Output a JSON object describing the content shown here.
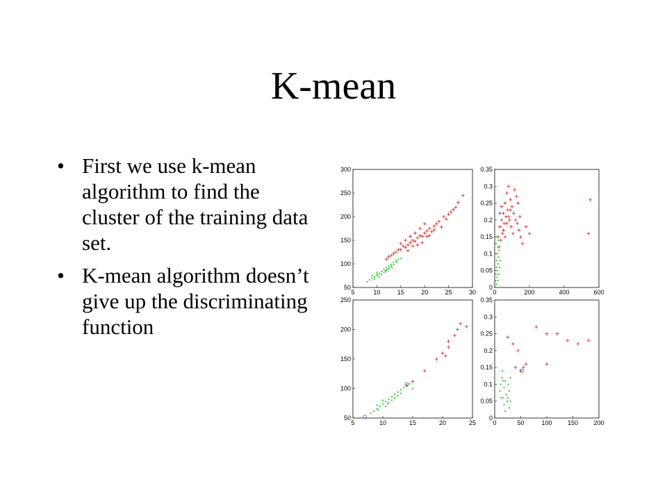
{
  "slide": {
    "title": "K-mean",
    "bullets": [
      "First we use k-mean algorithm to find the cluster of the training data set.",
      "K-mean algorithm doesn’t give up the discriminating function"
    ],
    "bullet_symbol": "•"
  },
  "chart_data": [
    {
      "type": "scatter",
      "title": "",
      "xlabel": "",
      "ylabel": "",
      "xlim": [
        5,
        30
      ],
      "ylim": [
        50,
        300
      ],
      "xticks": [
        5,
        10,
        15,
        20,
        25,
        30
      ],
      "yticks": [
        50,
        100,
        150,
        200,
        250,
        300
      ],
      "grid": false,
      "series": [
        {
          "color": "#cc2020",
          "marker": "plus",
          "points": [
            [
              12,
              110
            ],
            [
              13,
              118
            ],
            [
              14,
              125
            ],
            [
              15,
              130
            ],
            [
              15.5,
              138
            ],
            [
              16,
              135
            ],
            [
              16.5,
              140
            ],
            [
              17,
              145
            ],
            [
              17.5,
              150
            ],
            [
              18,
              148
            ],
            [
              18.5,
              155
            ],
            [
              19,
              160
            ],
            [
              19.5,
              158
            ],
            [
              20,
              165
            ],
            [
              20.5,
              170
            ],
            [
              21,
              175
            ],
            [
              21.5,
              168
            ],
            [
              22,
              180
            ],
            [
              22.5,
              185
            ],
            [
              23,
              190
            ],
            [
              24,
              200
            ],
            [
              25,
              205
            ],
            [
              26,
              215
            ],
            [
              27,
              230
            ],
            [
              28,
              245
            ],
            [
              26.5,
              220
            ],
            [
              25.5,
              210
            ],
            [
              20,
              185
            ],
            [
              19,
              175
            ],
            [
              18,
              165
            ],
            [
              17,
              158
            ],
            [
              16,
              150
            ],
            [
              14.5,
              130
            ],
            [
              13.5,
              122
            ],
            [
              15,
              143
            ],
            [
              21,
              160
            ],
            [
              22,
              172
            ],
            [
              23.5,
              178
            ],
            [
              19.5,
              145
            ],
            [
              18.5,
              140
            ],
            [
              17.5,
              138
            ],
            [
              24.5,
              195
            ],
            [
              12.5,
              115
            ],
            [
              16.5,
              128
            ],
            [
              20.5,
              158
            ]
          ]
        },
        {
          "color": "#22cc22",
          "marker": "dot",
          "points": [
            [
              8,
              62
            ],
            [
              8.5,
              66
            ],
            [
              9,
              70
            ],
            [
              9.5,
              73
            ],
            [
              10,
              77
            ],
            [
              10.5,
              80
            ],
            [
              11,
              84
            ],
            [
              11.5,
              88
            ],
            [
              12,
              92
            ],
            [
              12.5,
              95
            ],
            [
              13,
              99
            ],
            [
              13.5,
              103
            ],
            [
              14,
              107
            ],
            [
              9,
              75
            ],
            [
              10,
              82
            ],
            [
              11,
              78
            ],
            [
              12,
              86
            ],
            [
              13,
              95
            ],
            [
              10.5,
              72
            ],
            [
              11.5,
              82
            ],
            [
              12.5,
              90
            ],
            [
              13.5,
              98
            ],
            [
              14.5,
              110
            ],
            [
              15,
              112
            ],
            [
              9.5,
              68
            ],
            [
              10.2,
              76
            ],
            [
              11.8,
              85
            ],
            [
              12.2,
              88
            ],
            [
              13.2,
              92
            ],
            [
              14.2,
              104
            ]
          ]
        }
      ]
    },
    {
      "type": "scatter",
      "title": "",
      "xlabel": "",
      "ylabel": "",
      "xlim": [
        0,
        600
      ],
      "ylim": [
        0,
        0.35
      ],
      "xticks": [
        0,
        200,
        400,
        600
      ],
      "yticks": [
        0,
        0.05,
        0.1,
        0.15,
        0.2,
        0.25,
        0.3,
        0.35
      ],
      "grid": false,
      "series": [
        {
          "color": "#cc2020",
          "marker": "plus",
          "points": [
            [
              20,
              0.15
            ],
            [
              30,
              0.18
            ],
            [
              40,
              0.2
            ],
            [
              50,
              0.22
            ],
            [
              60,
              0.25
            ],
            [
              70,
              0.28
            ],
            [
              80,
              0.3
            ],
            [
              90,
              0.26
            ],
            [
              100,
              0.24
            ],
            [
              110,
              0.22
            ],
            [
              120,
              0.2
            ],
            [
              130,
              0.19
            ],
            [
              140,
              0.17
            ],
            [
              150,
              0.15
            ],
            [
              160,
              0.13
            ],
            [
              25,
              0.12
            ],
            [
              35,
              0.14
            ],
            [
              45,
              0.16
            ],
            [
              55,
              0.19
            ],
            [
              65,
              0.21
            ],
            [
              75,
              0.23
            ],
            [
              85,
              0.2
            ],
            [
              95,
              0.18
            ],
            [
              105,
              0.16
            ],
            [
              115,
              0.29
            ],
            [
              125,
              0.27
            ],
            [
              135,
              0.25
            ],
            [
              145,
              0.21
            ],
            [
              180,
              0.18
            ],
            [
              200,
              0.16
            ],
            [
              550,
              0.26
            ],
            [
              540,
              0.16
            ],
            [
              30,
              0.22
            ],
            [
              40,
              0.24
            ],
            [
              50,
              0.17
            ],
            [
              60,
              0.15
            ],
            [
              70,
              0.19
            ],
            [
              80,
              0.21
            ],
            [
              90,
              0.23
            ]
          ]
        },
        {
          "color": "#22cc22",
          "marker": "dot",
          "points": [
            [
              5,
              0.02
            ],
            [
              8,
              0.04
            ],
            [
              10,
              0.06
            ],
            [
              12,
              0.08
            ],
            [
              15,
              0.1
            ],
            [
              18,
              0.12
            ],
            [
              20,
              0.14
            ],
            [
              10,
              0.01
            ],
            [
              14,
              0.03
            ],
            [
              16,
              0.05
            ],
            [
              20,
              0.07
            ],
            [
              22,
              0.09
            ],
            [
              25,
              0.11
            ],
            [
              8,
              0.13
            ],
            [
              12,
              0.15
            ],
            [
              6,
              0.0
            ],
            [
              18,
              0.02
            ],
            [
              24,
              0.04
            ],
            [
              28,
              0.06
            ],
            [
              30,
              0.08
            ]
          ]
        }
      ]
    },
    {
      "type": "scatter",
      "title": "",
      "xlabel": "",
      "ylabel": "",
      "xlim": [
        5,
        25
      ],
      "ylim": [
        50,
        250
      ],
      "xticks": [
        5,
        10,
        15,
        20,
        25
      ],
      "yticks": [
        50,
        100,
        150,
        200,
        250
      ],
      "grid": false,
      "series": [
        {
          "color": "#cc2020",
          "marker": "plus",
          "points": [
            [
              14,
              105
            ],
            [
              15,
              112
            ],
            [
              17,
              130
            ],
            [
              19,
              150
            ],
            [
              20,
              160
            ],
            [
              20.5,
              155
            ],
            [
              21,
              170
            ],
            [
              22,
              190
            ],
            [
              22.5,
              200
            ],
            [
              23,
              210
            ],
            [
              24,
              205
            ],
            [
              21,
              180
            ]
          ]
        },
        {
          "color": "#22cc22",
          "marker": "dot",
          "points": [
            [
              8,
              58
            ],
            [
              8.5,
              62
            ],
            [
              9,
              66
            ],
            [
              9.5,
              70
            ],
            [
              10,
              74
            ],
            [
              10.5,
              78
            ],
            [
              11,
              82
            ],
            [
              11.5,
              86
            ],
            [
              12,
              90
            ],
            [
              12.5,
              94
            ],
            [
              13,
              98
            ],
            [
              13.5,
              102
            ],
            [
              14,
              106
            ],
            [
              9,
              72
            ],
            [
              10,
              80
            ],
            [
              11,
              76
            ],
            [
              12,
              84
            ],
            [
              13,
              92
            ],
            [
              10.5,
              70
            ],
            [
              11.5,
              80
            ],
            [
              12.5,
              88
            ],
            [
              14.5,
              108
            ],
            [
              15,
              100
            ],
            [
              9.2,
              64
            ],
            [
              10.8,
              74
            ]
          ]
        },
        {
          "color": "#5555cc",
          "marker": "circle",
          "points": [
            [
              7,
              52
            ],
            [
              14,
              107
            ]
          ]
        }
      ]
    },
    {
      "type": "scatter",
      "title": "",
      "xlabel": "",
      "ylabel": "",
      "xlim": [
        0,
        200
      ],
      "ylim": [
        0,
        0.35
      ],
      "xticks": [
        0,
        50,
        100,
        150,
        200
      ],
      "yticks": [
        0,
        0.05,
        0.1,
        0.15,
        0.2,
        0.25,
        0.3,
        0.35
      ],
      "grid": false,
      "series": [
        {
          "color": "#cc2020",
          "marker": "plus",
          "points": [
            [
              25,
              0.24
            ],
            [
              35,
              0.22
            ],
            [
              40,
              0.15
            ],
            [
              50,
              0.14
            ],
            [
              55,
              0.15
            ],
            [
              60,
              0.16
            ],
            [
              80,
              0.27
            ],
            [
              100,
              0.16
            ],
            [
              120,
              0.25
            ],
            [
              140,
              0.23
            ],
            [
              160,
              0.22
            ],
            [
              180,
              0.23
            ],
            [
              100,
              0.25
            ],
            [
              45,
              0.2
            ]
          ]
        },
        {
          "color": "#22cc22",
          "marker": "dot",
          "points": [
            [
              10,
              0.08
            ],
            [
              12,
              0.1
            ],
            [
              14,
              0.12
            ],
            [
              16,
              0.06
            ],
            [
              18,
              0.09
            ],
            [
              20,
              0.11
            ],
            [
              22,
              0.07
            ],
            [
              24,
              0.05
            ],
            [
              26,
              0.1
            ],
            [
              28,
              0.08
            ],
            [
              30,
              0.12
            ],
            [
              15,
              0.14
            ],
            [
              18,
              0.04
            ],
            [
              20,
              0.02
            ],
            [
              22,
              0.0
            ],
            [
              25,
              0.06
            ],
            [
              12,
              0.06
            ],
            [
              16,
              0.11
            ],
            [
              28,
              0.03
            ],
            [
              30,
              0.05
            ]
          ]
        },
        {
          "color": "#5555cc",
          "marker": "circle",
          "points": [
            [
              52,
              0.14
            ]
          ]
        }
      ]
    }
  ]
}
